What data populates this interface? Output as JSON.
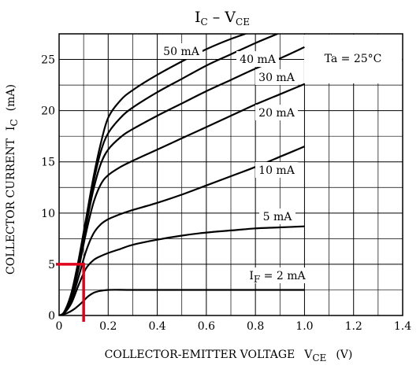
{
  "chart_data": {
    "type": "line",
    "title": {
      "main": "I",
      "sub1": "C",
      "sep": " – ",
      "main2": "V",
      "sub2": "CE"
    },
    "xlabel": {
      "text": "COLLECTOR-EMITTER VOLTAGE",
      "sym": "V",
      "sub": "CE",
      "unit": "(V)"
    },
    "ylabel": {
      "text": "COLLECTOR CURRENT",
      "sym": "I",
      "sub": "C",
      "unit": "(mA)"
    },
    "xlim": [
      0,
      1.4
    ],
    "ylim": [
      0,
      27.5
    ],
    "xticks": [
      "0",
      "0.2",
      "0.4",
      "0.6",
      "0.8",
      "1.0",
      "1.2",
      "1.4"
    ],
    "yticks": [
      "0",
      "5",
      "10",
      "15",
      "20",
      "25"
    ],
    "grid": true,
    "condition_box": "Ta = 25°C",
    "series": [
      {
        "name": "50 mA",
        "x": [
          0,
          0.02,
          0.05,
          0.08,
          0.11,
          0.14,
          0.17,
          0.2,
          0.25,
          0.3,
          0.4,
          0.5,
          0.6,
          0.7,
          0.82
        ],
        "y": [
          0,
          0.3,
          2.2,
          5.5,
          9.5,
          13.5,
          16.8,
          19.3,
          21.0,
          22.0,
          23.5,
          24.8,
          26.0,
          27.0,
          28.0
        ]
      },
      {
        "name": "40 mA",
        "x": [
          0,
          0.02,
          0.05,
          0.08,
          0.11,
          0.14,
          0.17,
          0.2,
          0.25,
          0.3,
          0.4,
          0.5,
          0.6,
          0.7,
          0.8,
          0.9
        ],
        "y": [
          0,
          0.3,
          2.1,
          5.3,
          9.2,
          13.0,
          16.0,
          17.8,
          19.3,
          20.3,
          21.8,
          23.1,
          24.4,
          25.5,
          26.6,
          27.6
        ]
      },
      {
        "name": "30 mA",
        "x": [
          0,
          0.02,
          0.05,
          0.08,
          0.11,
          0.14,
          0.17,
          0.2,
          0.25,
          0.3,
          0.4,
          0.5,
          0.6,
          0.7,
          0.8,
          0.9,
          1.0
        ],
        "y": [
          0,
          0.3,
          2.0,
          5.0,
          8.8,
          12.3,
          14.8,
          16.2,
          17.4,
          18.2,
          19.5,
          20.7,
          21.9,
          23.0,
          24.1,
          25.1,
          26.2
        ]
      },
      {
        "name": "20 mA",
        "x": [
          0,
          0.02,
          0.05,
          0.08,
          0.11,
          0.14,
          0.17,
          0.2,
          0.25,
          0.3,
          0.4,
          0.5,
          0.6,
          0.7,
          0.8,
          0.9,
          1.0
        ],
        "y": [
          0,
          0.3,
          1.8,
          4.6,
          8.1,
          11.0,
          12.8,
          13.7,
          14.5,
          15.1,
          16.2,
          17.3,
          18.4,
          19.5,
          20.6,
          21.6,
          22.6
        ]
      },
      {
        "name": "10 mA",
        "x": [
          0,
          0.02,
          0.05,
          0.08,
          0.11,
          0.14,
          0.17,
          0.2,
          0.25,
          0.3,
          0.4,
          0.5,
          0.6,
          0.7,
          0.8,
          0.9,
          1.0
        ],
        "y": [
          0,
          0.2,
          1.5,
          3.8,
          6.3,
          8.0,
          8.9,
          9.4,
          9.9,
          10.3,
          11.0,
          11.8,
          12.7,
          13.6,
          14.5,
          15.5,
          16.5
        ]
      },
      {
        "name": "5 mA",
        "x": [
          0,
          0.02,
          0.05,
          0.08,
          0.11,
          0.14,
          0.17,
          0.2,
          0.25,
          0.3,
          0.4,
          0.5,
          0.6,
          0.7,
          0.8,
          0.9,
          1.0
        ],
        "y": [
          0,
          0.2,
          1.2,
          3.0,
          4.6,
          5.4,
          5.8,
          6.1,
          6.5,
          6.9,
          7.4,
          7.8,
          8.1,
          8.3,
          8.5,
          8.6,
          8.7
        ]
      },
      {
        "name": "IF = 2 mA",
        "label_sym": "I",
        "label_sub": "F",
        "label_rest": " = 2 mA",
        "x": [
          0,
          0.03,
          0.06,
          0.09,
          0.12,
          0.15,
          0.2,
          0.3,
          0.5,
          0.7,
          1.0
        ],
        "y": [
          0,
          0.2,
          0.6,
          1.2,
          1.9,
          2.3,
          2.5,
          2.5,
          2.5,
          2.5,
          2.5
        ]
      }
    ],
    "annotation": {
      "x": 0.1,
      "y": 5,
      "color": "#e0001b"
    },
    "colors": {
      "curve": "#000000",
      "grid": "#000000",
      "marker": "#e0001b"
    }
  }
}
